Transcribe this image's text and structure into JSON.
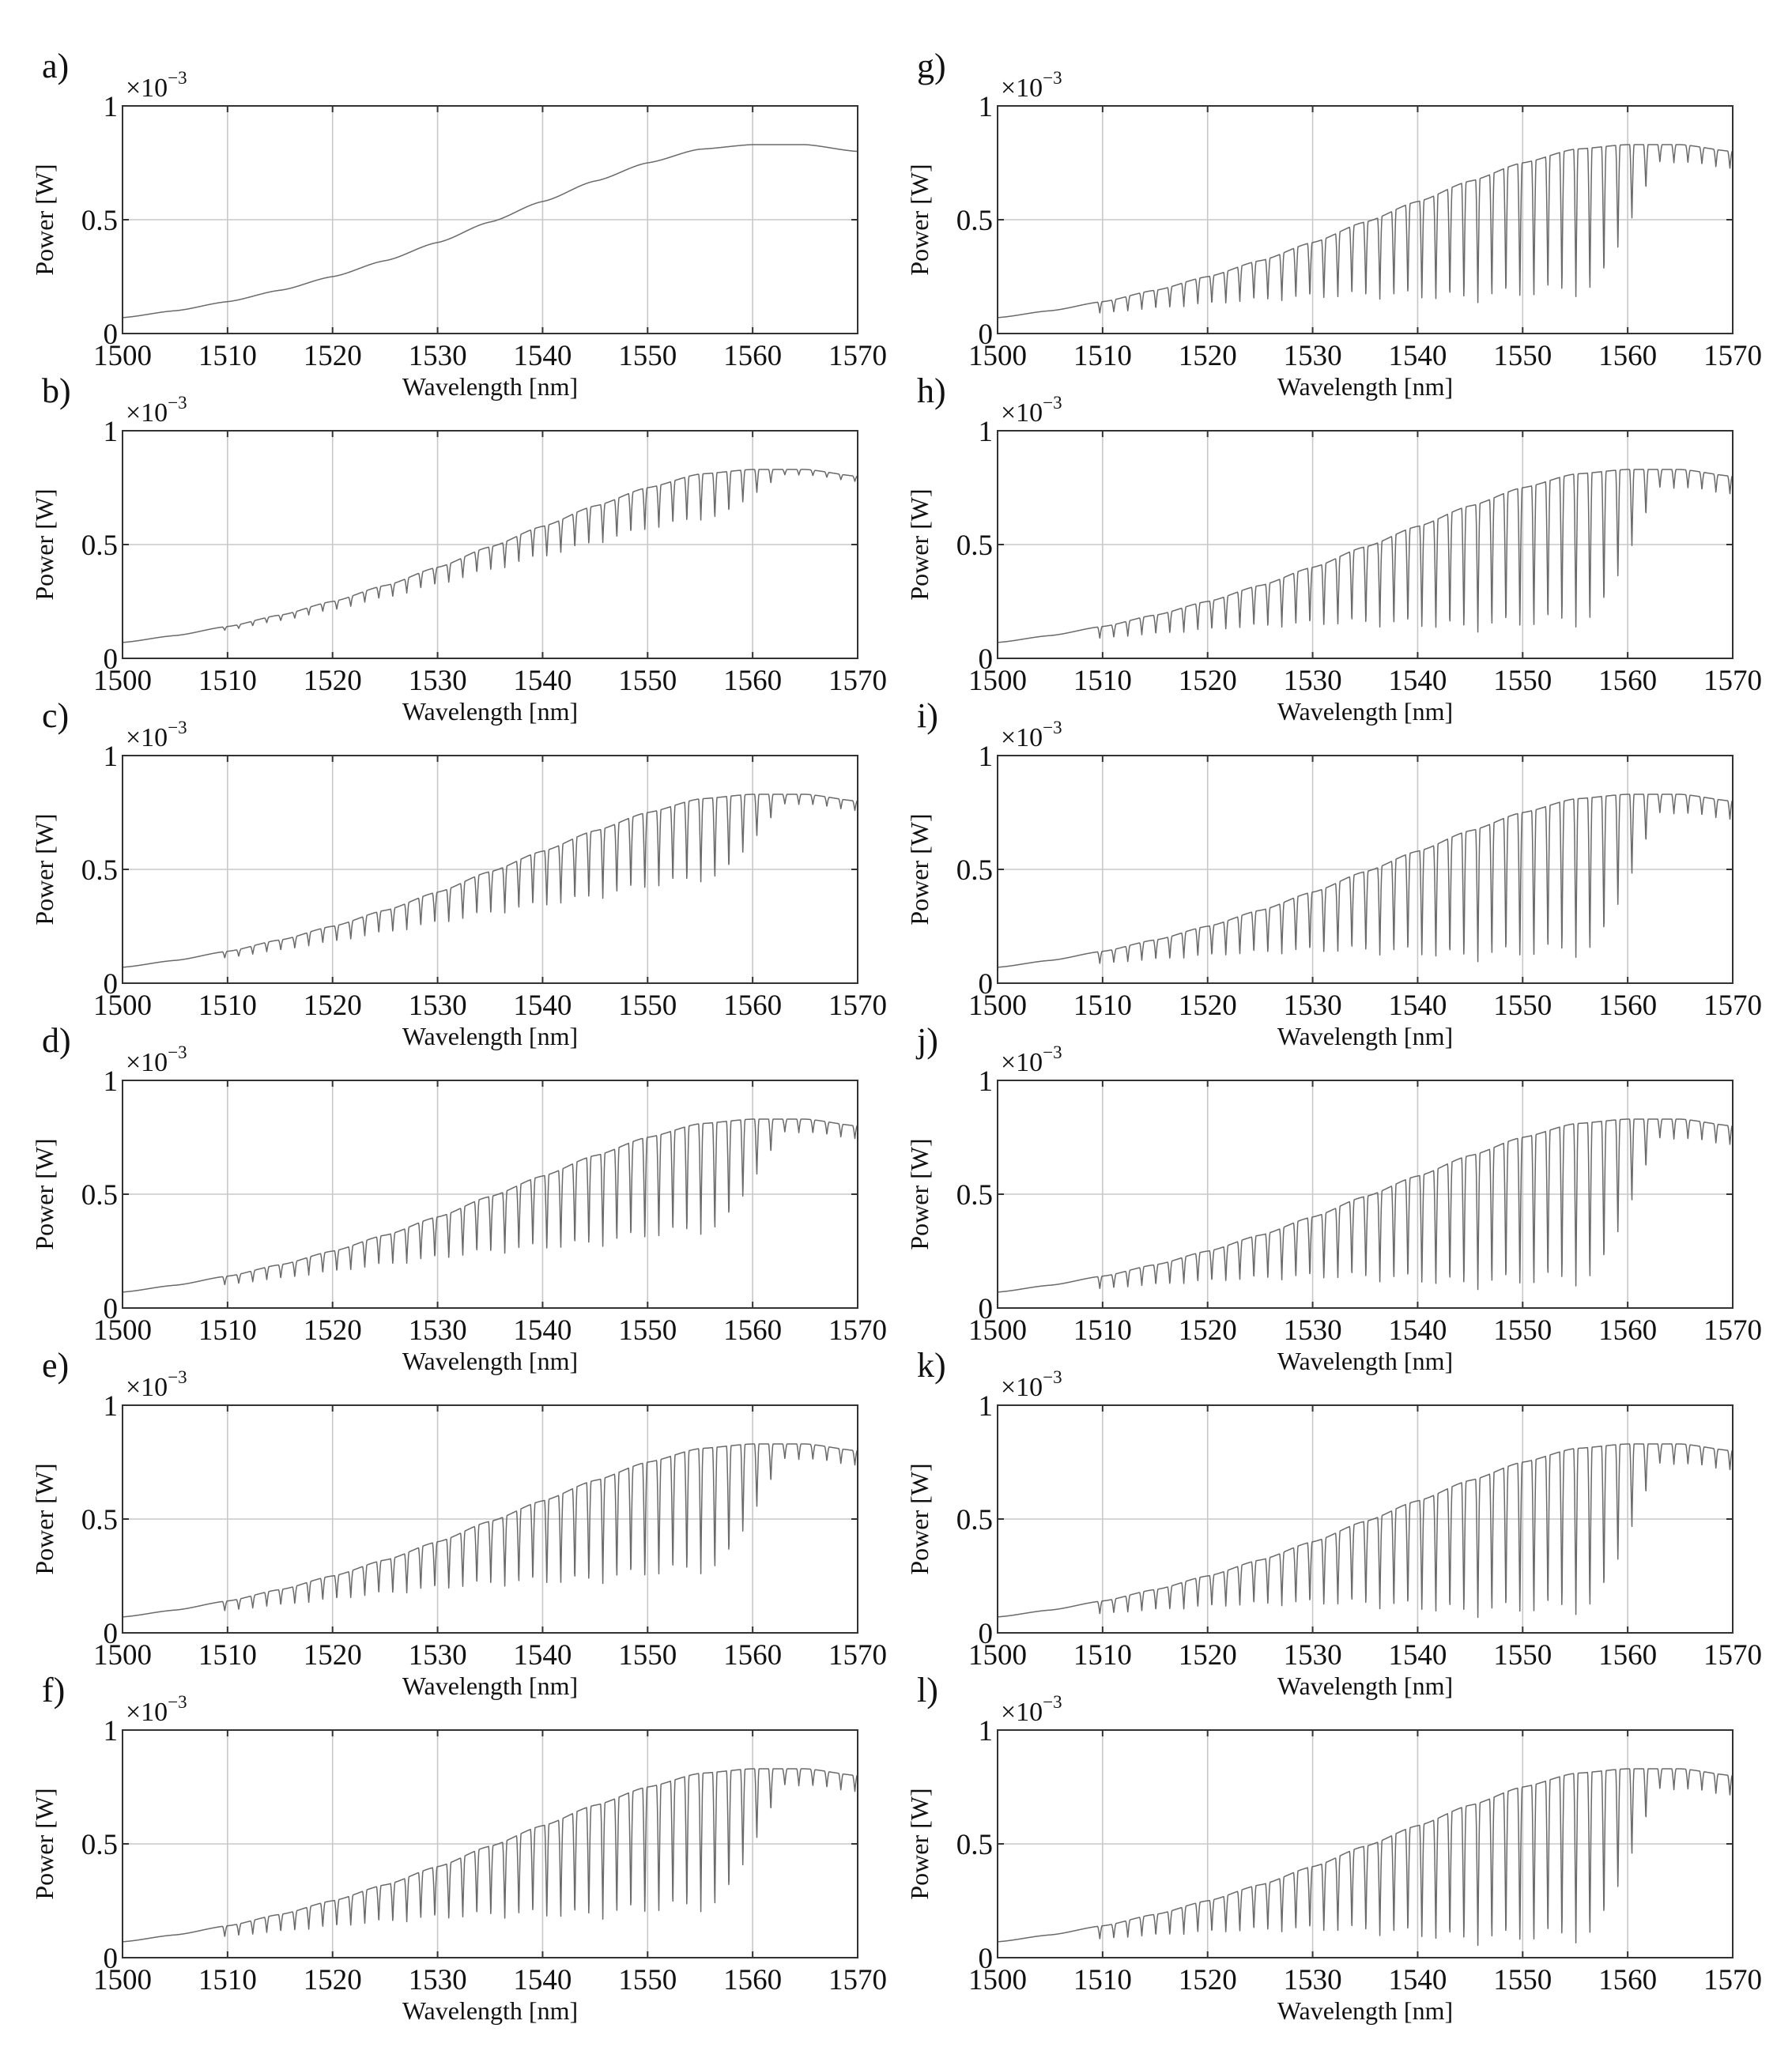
{
  "chart_data": [
    {
      "type": "line",
      "panel_label": "a)",
      "series": [
        {
          "name": "spectrum",
          "shape": "smooth gaussian-like envelope, no dips",
          "dip_count": 0,
          "dip_depth": 0
        }
      ]
    },
    {
      "type": "line",
      "panel_label": "b)",
      "series": [
        {
          "name": "spectrum",
          "shape": "envelope with shallow periodic dips",
          "dip_count": 45,
          "dip_depth": 0.25
        }
      ]
    },
    {
      "type": "line",
      "panel_label": "c)",
      "series": [
        {
          "name": "spectrum",
          "shape": "envelope with periodic dips",
          "dip_count": 45,
          "dip_depth": 0.45
        }
      ]
    },
    {
      "type": "line",
      "panel_label": "d)",
      "series": [
        {
          "name": "spectrum",
          "shape": "envelope with periodic dips",
          "dip_count": 45,
          "dip_depth": 0.6
        }
      ]
    },
    {
      "type": "line",
      "panel_label": "e)",
      "series": [
        {
          "name": "spectrum",
          "shape": "envelope with periodic dips",
          "dip_count": 45,
          "dip_depth": 0.68
        }
      ]
    },
    {
      "type": "line",
      "panel_label": "f)",
      "series": [
        {
          "name": "spectrum",
          "shape": "envelope with deep periodic dips",
          "dip_count": 45,
          "dip_depth": 0.75
        }
      ]
    },
    {
      "type": "line",
      "panel_label": "g)",
      "series": [
        {
          "name": "spectrum",
          "shape": "envelope with deep periodic dips",
          "dip_count": 45,
          "dip_depth": 0.8
        }
      ]
    },
    {
      "type": "line",
      "panel_label": "h)",
      "series": [
        {
          "name": "spectrum",
          "shape": "envelope with deep periodic dips",
          "dip_count": 45,
          "dip_depth": 0.83
        }
      ]
    },
    {
      "type": "line",
      "panel_label": "i)",
      "series": [
        {
          "name": "spectrum",
          "shape": "envelope with deep periodic dips",
          "dip_count": 45,
          "dip_depth": 0.86
        }
      ]
    },
    {
      "type": "line",
      "panel_label": "j)",
      "series": [
        {
          "name": "spectrum",
          "shape": "envelope with deep periodic dips",
          "dip_count": 45,
          "dip_depth": 0.88
        }
      ]
    },
    {
      "type": "line",
      "panel_label": "k)",
      "series": [
        {
          "name": "spectrum",
          "shape": "envelope with deep periodic dips",
          "dip_count": 45,
          "dip_depth": 0.9
        }
      ]
    },
    {
      "type": "line",
      "panel_label": "l)",
      "series": [
        {
          "name": "spectrum",
          "shape": "envelope with deep periodic dips",
          "dip_count": 45,
          "dip_depth": 0.92
        }
      ]
    }
  ],
  "shared_axes": {
    "xlabel": "Wavelength [nm]",
    "ylabel": "Power [W]",
    "xlim": [
      1500,
      1570
    ],
    "ylim": [
      0,
      1
    ],
    "y_scale_base": "×10",
    "y_scale_exponent": "−3",
    "x_ticks": [
      1500,
      1510,
      1520,
      1530,
      1540,
      1550,
      1560,
      1570
    ],
    "x_tick_labels": [
      "1500",
      "1510",
      "1520",
      "1530",
      "1540",
      "1550",
      "1560",
      "1570"
    ],
    "y_ticks": [
      0,
      0.5,
      1
    ],
    "y_tick_labels": [
      "0",
      "0.5",
      "1"
    ],
    "grid": true
  },
  "envelope": {
    "description": "common source spectrum, values in ×10^-3 W",
    "wavelength_nm": [
      1500,
      1505,
      1510,
      1515,
      1520,
      1525,
      1530,
      1535,
      1540,
      1545,
      1550,
      1555,
      1560,
      1565,
      1570
    ],
    "power": [
      0.07,
      0.1,
      0.14,
      0.19,
      0.25,
      0.32,
      0.4,
      0.49,
      0.58,
      0.67,
      0.75,
      0.81,
      0.83,
      0.83,
      0.8
    ]
  },
  "dips": {
    "description": "periodic transmission dips start near 1510 nm and fade out beyond 1557 nm",
    "start_nm": 1509,
    "end_nm": 1569,
    "fade_start_nm": 1557,
    "fade_end_nm": 1563,
    "residual_depth_factor": 0.12
  },
  "colors": {
    "trace": "#6a6a6a",
    "grid": "#c8c8c8",
    "frame": "#333333",
    "text": "#111111",
    "background": "#ffffff"
  }
}
